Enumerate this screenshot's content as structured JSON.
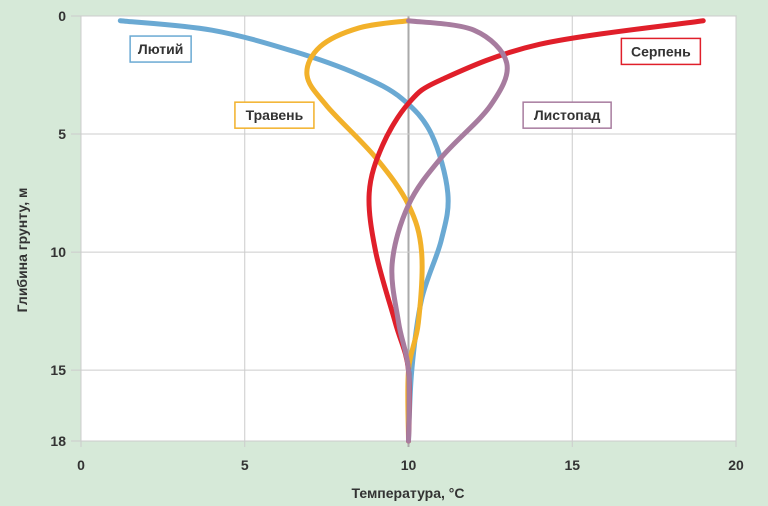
{
  "chart_data": {
    "type": "line",
    "title": "",
    "xlabel": "Температура, °C",
    "ylabel": "Глибина грунту, м",
    "xlim": [
      0,
      20
    ],
    "ylim": [
      0,
      18
    ],
    "y_inverted": true,
    "xticks": [
      0,
      5,
      10,
      15,
      20
    ],
    "yticks": [
      0,
      5,
      10,
      15,
      18
    ],
    "grid": true,
    "series": [
      {
        "name": "Лютий",
        "color": "#6aa9d3",
        "points": [
          [
            1.2,
            0.2
          ],
          [
            4,
            0.6
          ],
          [
            6.5,
            1.5
          ],
          [
            8.5,
            2.5
          ],
          [
            9.8,
            3.5
          ],
          [
            10.7,
            5
          ],
          [
            11.2,
            7.5
          ],
          [
            11,
            9.5
          ],
          [
            10.4,
            12
          ],
          [
            10.1,
            15
          ],
          [
            10,
            18
          ]
        ]
      },
      {
        "name": "Травень",
        "color": "#f2b12a",
        "points": [
          [
            10,
            0.2
          ],
          [
            8.5,
            0.5
          ],
          [
            7.3,
            1.3
          ],
          [
            6.9,
            2.5
          ],
          [
            7.5,
            3.8
          ],
          [
            9,
            6
          ],
          [
            10,
            8
          ],
          [
            10.4,
            10
          ],
          [
            10.3,
            13
          ],
          [
            10,
            15
          ],
          [
            10,
            18
          ]
        ]
      },
      {
        "name": "Серпень",
        "color": "#e01f2a",
        "points": [
          [
            19,
            0.2
          ],
          [
            14,
            1.2
          ],
          [
            11,
            2.7
          ],
          [
            10,
            3.7
          ],
          [
            9.2,
            5.5
          ],
          [
            8.8,
            7.5
          ],
          [
            9,
            10
          ],
          [
            9.6,
            13
          ],
          [
            10,
            15
          ],
          [
            10,
            18
          ]
        ]
      },
      {
        "name": "Листопад",
        "color": "#a77c9f",
        "points": [
          [
            10,
            0.2
          ],
          [
            12,
            0.6
          ],
          [
            13,
            2
          ],
          [
            12.5,
            3.8
          ],
          [
            11,
            6
          ],
          [
            10,
            8
          ],
          [
            9.5,
            10.5
          ],
          [
            9.7,
            13
          ],
          [
            10,
            15
          ],
          [
            10,
            18
          ]
        ]
      }
    ],
    "legend": [
      {
        "label": "Лютий",
        "color": "#6aa9d3",
        "anchor": [
          1.5,
          1.4
        ]
      },
      {
        "label": "Травень",
        "color": "#f2b12a",
        "anchor": [
          4.7,
          4.2
        ]
      },
      {
        "label": "Серпень",
        "color": "#e01f2a",
        "anchor": [
          16.5,
          1.5
        ]
      },
      {
        "label": "Листопад",
        "color": "#a77c9f",
        "anchor": [
          13.5,
          4.2
        ]
      }
    ]
  }
}
